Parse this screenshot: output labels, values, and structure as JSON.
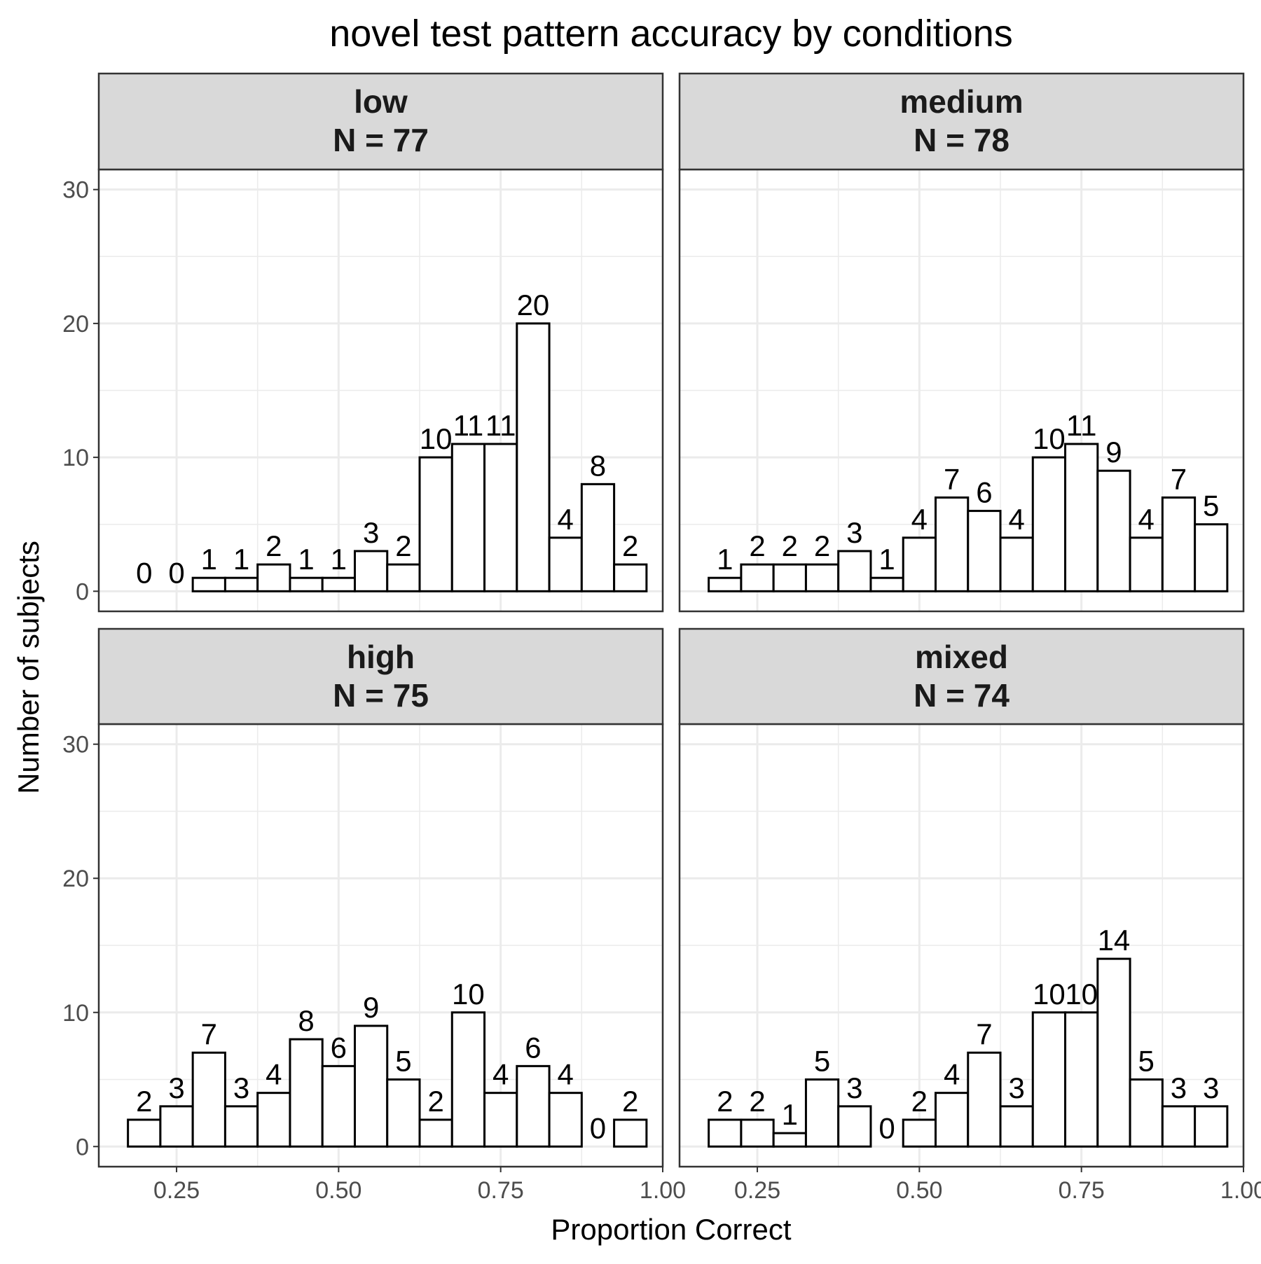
{
  "chart_data": {
    "type": "bar",
    "title": "novel test pattern accuracy by conditions",
    "xlabel": "Proportion Correct",
    "ylabel": "Number of subjects",
    "xlim": [
      0.13,
      1.0
    ],
    "ylim": [
      -1.5,
      31.5
    ],
    "x_ticks": [
      "0.25",
      "0.50",
      "0.75",
      "1.00"
    ],
    "y_ticks": [
      "0",
      "10",
      "20",
      "30"
    ],
    "grid": true,
    "bin_width": 0.05,
    "colors": {
      "bar_fill": "#ffffff",
      "bar_stroke": "#000000",
      "strip_fill": "#d9d9d9",
      "grid": "#ebebeb",
      "panel_border": "#333333"
    },
    "panels": [
      {
        "condition": "low",
        "n_label": "N = 77",
        "x": [
          0.2,
          0.25,
          0.3,
          0.35,
          0.4,
          0.45,
          0.5,
          0.55,
          0.6,
          0.65,
          0.7,
          0.75,
          0.8,
          0.85,
          0.9,
          0.95
        ],
        "values": [
          0,
          0,
          1,
          1,
          2,
          1,
          1,
          3,
          2,
          10,
          11,
          11,
          20,
          4,
          8,
          2
        ]
      },
      {
        "condition": "medium",
        "n_label": "N = 78",
        "x": [
          0.2,
          0.25,
          0.3,
          0.35,
          0.4,
          0.45,
          0.5,
          0.55,
          0.6,
          0.65,
          0.7,
          0.75,
          0.8,
          0.85,
          0.9,
          0.95
        ],
        "values": [
          1,
          2,
          2,
          2,
          3,
          1,
          4,
          7,
          6,
          4,
          10,
          11,
          9,
          4,
          7,
          5
        ]
      },
      {
        "condition": "high",
        "n_label": "N = 75",
        "x": [
          0.2,
          0.25,
          0.3,
          0.35,
          0.4,
          0.45,
          0.5,
          0.55,
          0.6,
          0.65,
          0.7,
          0.75,
          0.8,
          0.85,
          0.9,
          0.95
        ],
        "values": [
          2,
          3,
          7,
          3,
          4,
          8,
          6,
          9,
          5,
          2,
          10,
          4,
          6,
          4,
          0,
          2
        ]
      },
      {
        "condition": "mixed",
        "n_label": "N = 74",
        "x": [
          0.2,
          0.25,
          0.3,
          0.35,
          0.4,
          0.45,
          0.5,
          0.55,
          0.6,
          0.65,
          0.7,
          0.75,
          0.8,
          0.85,
          0.9,
          0.95
        ],
        "values": [
          2,
          2,
          1,
          5,
          3,
          0,
          2,
          4,
          7,
          3,
          10,
          10,
          14,
          5,
          3,
          3
        ]
      }
    ]
  }
}
